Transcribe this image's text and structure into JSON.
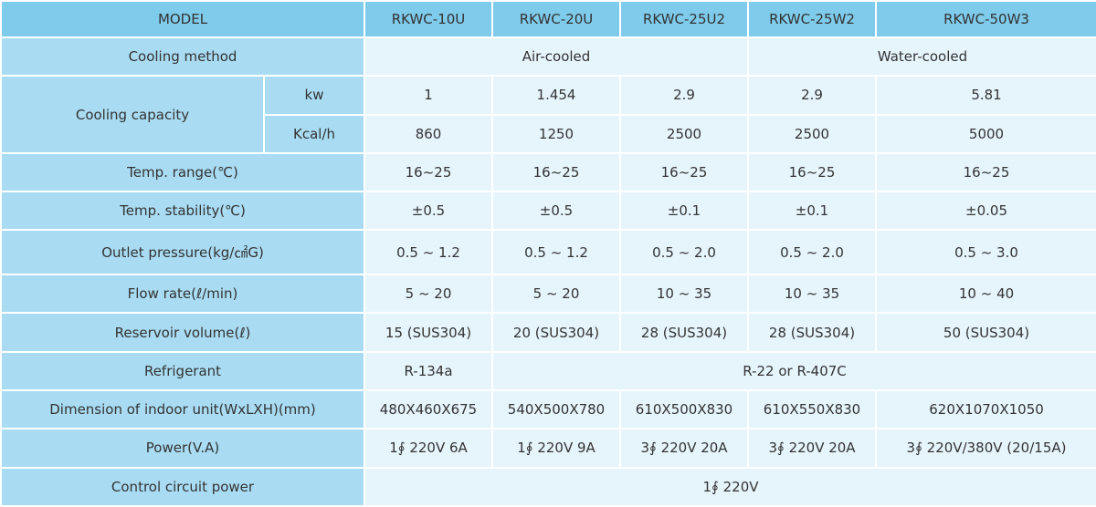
{
  "table": {
    "header": [
      "MODEL",
      "RKWC-10U",
      "RKWC-20U",
      "RKWC-25U2",
      "RKWC-25W2",
      "RKWC-50W3"
    ],
    "cooling_method": {
      "label": "Cooling method",
      "cells": [
        "Air-cooled",
        "Water-cooled"
      ]
    },
    "cooling_capacity": {
      "label": "Cooling capacity",
      "kw": {
        "unit": "kw",
        "cells": [
          "1",
          "1.454",
          "2.9",
          "2.9",
          "5.81"
        ]
      },
      "kcal": {
        "unit": "Kcal/h",
        "cells": [
          "860",
          "1250",
          "2500",
          "2500",
          "5000"
        ]
      }
    },
    "rows": [
      {
        "label": "Temp. range(℃)",
        "cells": [
          "16~25",
          "16~25",
          "16~25",
          "16~25",
          "16~25"
        ]
      },
      {
        "label": "Temp. stability(℃)",
        "cells": [
          "±0.5",
          "±0.5",
          "±0.1",
          "±0.1",
          "±0.05"
        ]
      },
      {
        "label": "Outlet pressure(kg/㎠G)",
        "cells": [
          "0.5 ~ 1.2",
          "0.5 ~ 1.2",
          "0.5 ~ 2.0",
          "0.5 ~ 2.0",
          "0.5 ~ 3.0"
        ]
      },
      {
        "label": "Flow rate(ℓ/min)",
        "cells": [
          "5 ~ 20",
          "5 ~ 20",
          "10 ~ 35",
          "10 ~ 35",
          "10 ~ 40"
        ]
      },
      {
        "label": "Reservoir volume(ℓ)",
        "cells": [
          "15 (SUS304)",
          "20 (SUS304)",
          "28 (SUS304)",
          "28 (SUS304)",
          "50 (SUS304)"
        ]
      }
    ],
    "refrigerant": {
      "label": "Refrigerant",
      "cells": [
        "R-134a",
        "R-22 or R-407C"
      ]
    },
    "rows2": [
      {
        "label": "Dimension of indoor unit(WxLXH)(mm)",
        "cells": [
          "480X460X675",
          "540X500X780",
          "610X500X830",
          "610X550X830",
          "620X1070X1050"
        ]
      },
      {
        "label": "Power(V.A)",
        "cells": [
          "1∮ 220V 6A",
          "1∮ 220V 9A",
          "3∮ 220V 20A",
          "3∮ 220V 20A",
          "3∮ 220V/380V (20/15A)"
        ]
      }
    ],
    "control": {
      "label": "Control circuit power",
      "cells": [
        "1∮ 220V"
      ]
    }
  }
}
